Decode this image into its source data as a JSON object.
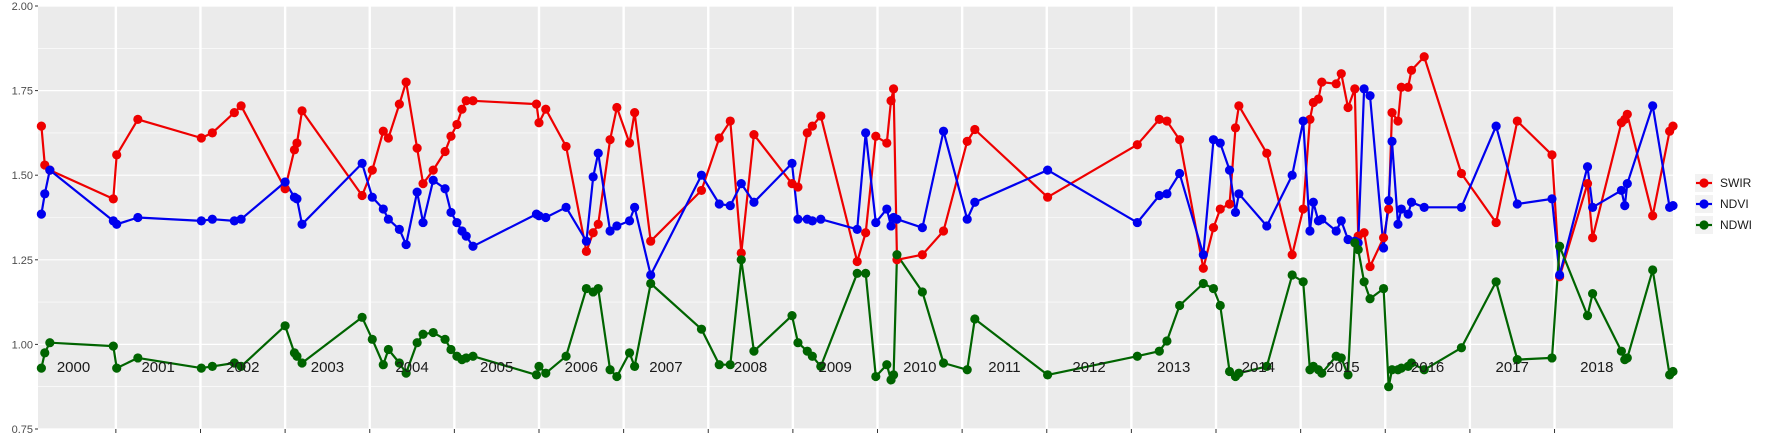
{
  "chart_data": {
    "type": "line",
    "title": "",
    "xlabel": "",
    "ylabel": "",
    "xlim": [
      1999.58,
      2018.9
    ],
    "ylim": [
      0.75,
      2.0
    ],
    "y_ticks": [
      "0.75",
      "1.00",
      "1.25",
      "1.50",
      "1.75",
      "2.00"
    ],
    "year_panels": [
      "2000",
      "2001",
      "2002",
      "2003",
      "2004",
      "2005",
      "2006",
      "2007",
      "2008",
      "2009",
      "2010",
      "2011",
      "2012",
      "2013",
      "2014",
      "2015",
      "2016",
      "2017",
      "2018"
    ],
    "grid": true,
    "legend_position": "right",
    "colors": {
      "SWIR": "#ee0000",
      "NDVI": "#0000ee",
      "NDWI": "#006400",
      "panel_bg": "#ebebeb",
      "grid": "#ffffff"
    },
    "series": [
      {
        "name": "SWIR",
        "x": [
          1999.62,
          1999.66,
          1999.72,
          2000.47,
          2000.51,
          2000.76,
          2001.51,
          2001.64,
          2001.9,
          2001.98,
          2002.5,
          2002.61,
          2002.64,
          2002.7,
          2003.41,
          2003.53,
          2003.66,
          2003.72,
          2003.85,
          2003.93,
          2004.06,
          2004.13,
          2004.25,
          2004.39,
          2004.46,
          2004.53,
          2004.59,
          2004.64,
          2004.72,
          2005.47,
          2005.5,
          2005.58,
          2005.82,
          2006.06,
          2006.14,
          2006.2,
          2006.34,
          2006.42,
          2006.57,
          2006.63,
          2006.82,
          2007.42,
          2007.63,
          2007.76,
          2007.89,
          2008.04,
          2008.49,
          2008.56,
          2008.67,
          2008.73,
          2008.83,
          2009.26,
          2009.36,
          2009.48,
          2009.61,
          2009.66,
          2009.69,
          2009.73,
          2010.03,
          2010.28,
          2010.56,
          2010.65,
          2011.51,
          2012.57,
          2012.83,
          2012.92,
          2013.07,
          2013.35,
          2013.47,
          2013.55,
          2013.66,
          2013.73,
          2013.77,
          2014.1,
          2014.4,
          2014.53,
          2014.61,
          2014.65,
          2014.71,
          2014.75,
          2014.92,
          2014.98,
          2015.06,
          2015.14,
          2015.18,
          2015.25,
          2015.32,
          2015.48,
          2015.54,
          2015.58,
          2015.65,
          2015.69,
          2015.77,
          2015.81,
          2015.96,
          2016.4,
          2016.81,
          2017.06,
          2017.47,
          2017.56,
          2017.89,
          2017.95,
          2018.29,
          2018.33,
          2018.36,
          2018.66,
          2018.86,
          2018.9
        ],
        "y": [
          1.645,
          1.53,
          1.515,
          1.43,
          1.56,
          1.665,
          1.61,
          1.625,
          1.685,
          1.705,
          1.46,
          1.575,
          1.595,
          1.69,
          1.44,
          1.515,
          1.63,
          1.61,
          1.71,
          1.775,
          1.58,
          1.475,
          1.515,
          1.57,
          1.615,
          1.65,
          1.695,
          1.72,
          1.72,
          1.71,
          1.655,
          1.695,
          1.585,
          1.275,
          1.33,
          1.355,
          1.605,
          1.7,
          1.595,
          1.685,
          1.305,
          1.455,
          1.61,
          1.66,
          1.27,
          1.62,
          1.475,
          1.465,
          1.625,
          1.645,
          1.675,
          1.245,
          1.33,
          1.615,
          1.595,
          1.72,
          1.755,
          1.25,
          1.265,
          1.335,
          1.6,
          1.635,
          1.435,
          1.59,
          1.665,
          1.66,
          1.605,
          1.225,
          1.345,
          1.4,
          1.415,
          1.64,
          1.705,
          1.565,
          1.265,
          1.4,
          1.665,
          1.715,
          1.725,
          1.775,
          1.77,
          1.8,
          1.7,
          1.755,
          1.32,
          1.33,
          1.23,
          1.315,
          1.4,
          1.685,
          1.66,
          1.76,
          1.76,
          1.81,
          1.85,
          1.505,
          1.36,
          1.66,
          1.56,
          1.2,
          1.475,
          1.315,
          1.655,
          1.665,
          1.68,
          1.38,
          1.63,
          1.645
        ]
      },
      {
        "name": "NDVI",
        "x": [
          1999.62,
          1999.66,
          1999.72,
          2000.47,
          2000.51,
          2000.76,
          2001.51,
          2001.64,
          2001.9,
          2001.98,
          2002.5,
          2002.61,
          2002.64,
          2002.7,
          2003.41,
          2003.53,
          2003.66,
          2003.72,
          2003.85,
          2003.93,
          2004.06,
          2004.13,
          2004.25,
          2004.39,
          2004.46,
          2004.53,
          2004.59,
          2004.64,
          2004.72,
          2005.47,
          2005.5,
          2005.58,
          2005.82,
          2006.06,
          2006.14,
          2006.2,
          2006.34,
          2006.42,
          2006.57,
          2006.63,
          2006.82,
          2007.42,
          2007.63,
          2007.76,
          2007.89,
          2008.04,
          2008.49,
          2008.56,
          2008.67,
          2008.73,
          2008.83,
          2009.26,
          2009.36,
          2009.48,
          2009.61,
          2009.66,
          2009.69,
          2009.73,
          2010.03,
          2010.28,
          2010.56,
          2010.65,
          2011.51,
          2012.57,
          2012.83,
          2012.92,
          2013.07,
          2013.35,
          2013.47,
          2013.55,
          2013.66,
          2013.73,
          2013.77,
          2014.1,
          2014.4,
          2014.53,
          2014.61,
          2014.65,
          2014.71,
          2014.75,
          2014.92,
          2014.98,
          2015.06,
          2015.14,
          2015.18,
          2015.25,
          2015.32,
          2015.48,
          2015.54,
          2015.58,
          2015.65,
          2015.69,
          2015.77,
          2015.81,
          2015.96,
          2016.4,
          2016.81,
          2017.06,
          2017.47,
          2017.56,
          2017.89,
          2017.95,
          2018.29,
          2018.33,
          2018.36,
          2018.66,
          2018.86,
          2018.9
        ],
        "y": [
          1.385,
          1.445,
          1.515,
          1.365,
          1.355,
          1.375,
          1.365,
          1.37,
          1.365,
          1.37,
          1.48,
          1.435,
          1.43,
          1.355,
          1.535,
          1.435,
          1.4,
          1.37,
          1.34,
          1.295,
          1.45,
          1.36,
          1.485,
          1.46,
          1.39,
          1.36,
          1.335,
          1.32,
          1.29,
          1.385,
          1.38,
          1.375,
          1.405,
          1.305,
          1.495,
          1.565,
          1.335,
          1.35,
          1.365,
          1.405,
          1.205,
          1.5,
          1.415,
          1.41,
          1.475,
          1.42,
          1.535,
          1.37,
          1.37,
          1.365,
          1.37,
          1.34,
          1.625,
          1.36,
          1.4,
          1.35,
          1.375,
          1.37,
          1.345,
          1.63,
          1.37,
          1.42,
          1.515,
          1.36,
          1.44,
          1.445,
          1.505,
          1.265,
          1.605,
          1.595,
          1.515,
          1.39,
          1.445,
          1.35,
          1.5,
          1.66,
          1.335,
          1.42,
          1.365,
          1.37,
          1.335,
          1.365,
          1.31,
          1.305,
          1.3,
          1.755,
          1.735,
          1.285,
          1.425,
          1.6,
          1.355,
          1.4,
          1.385,
          1.42,
          1.405,
          1.405,
          1.645,
          1.415,
          1.43,
          1.205,
          1.525,
          1.405,
          1.455,
          1.41,
          1.475,
          1.705,
          1.405,
          1.41
        ]
      },
      {
        "name": "NDWI",
        "x": [
          1999.62,
          1999.66,
          1999.72,
          2000.47,
          2000.51,
          2000.76,
          2001.51,
          2001.64,
          2001.9,
          2001.98,
          2002.5,
          2002.61,
          2002.64,
          2002.7,
          2003.41,
          2003.53,
          2003.66,
          2003.72,
          2003.85,
          2003.93,
          2004.06,
          2004.13,
          2004.25,
          2004.39,
          2004.46,
          2004.53,
          2004.59,
          2004.64,
          2004.72,
          2005.47,
          2005.5,
          2005.58,
          2005.82,
          2006.06,
          2006.14,
          2006.2,
          2006.34,
          2006.42,
          2006.57,
          2006.63,
          2006.82,
          2007.42,
          2007.63,
          2007.76,
          2007.89,
          2008.04,
          2008.49,
          2008.56,
          2008.67,
          2008.73,
          2008.83,
          2009.26,
          2009.36,
          2009.48,
          2009.61,
          2009.66,
          2009.69,
          2009.73,
          2010.03,
          2010.28,
          2010.56,
          2010.65,
          2011.51,
          2012.57,
          2012.83,
          2012.92,
          2013.07,
          2013.35,
          2013.47,
          2013.55,
          2013.66,
          2013.73,
          2013.77,
          2014.1,
          2014.4,
          2014.53,
          2014.61,
          2014.65,
          2014.71,
          2014.75,
          2014.92,
          2014.98,
          2015.06,
          2015.14,
          2015.18,
          2015.25,
          2015.32,
          2015.48,
          2015.54,
          2015.58,
          2015.65,
          2015.69,
          2015.77,
          2015.81,
          2015.96,
          2016.4,
          2016.81,
          2017.06,
          2017.47,
          2017.56,
          2017.89,
          2017.95,
          2018.29,
          2018.33,
          2018.36,
          2018.66,
          2018.86,
          2018.9
        ],
        "y": [
          0.93,
          0.975,
          1.005,
          0.995,
          0.93,
          0.96,
          0.93,
          0.935,
          0.945,
          0.935,
          1.055,
          0.975,
          0.965,
          0.945,
          1.08,
          1.015,
          0.94,
          0.985,
          0.945,
          0.915,
          1.005,
          1.03,
          1.035,
          1.015,
          0.985,
          0.965,
          0.955,
          0.96,
          0.965,
          0.91,
          0.935,
          0.915,
          0.965,
          1.165,
          1.155,
          1.165,
          0.925,
          0.905,
          0.975,
          0.935,
          1.18,
          1.045,
          0.94,
          0.94,
          1.25,
          0.98,
          1.085,
          1.005,
          0.98,
          0.965,
          0.935,
          1.21,
          1.21,
          0.905,
          0.94,
          0.895,
          0.91,
          1.265,
          1.155,
          0.945,
          0.925,
          1.075,
          0.91,
          0.965,
          0.98,
          1.01,
          1.115,
          1.18,
          1.165,
          1.115,
          0.92,
          0.905,
          0.915,
          0.935,
          1.205,
          1.185,
          0.925,
          0.935,
          0.925,
          0.915,
          0.965,
          0.96,
          0.91,
          1.3,
          1.28,
          1.185,
          1.135,
          1.165,
          0.875,
          0.925,
          0.925,
          0.93,
          0.935,
          0.945,
          0.925,
          0.99,
          1.185,
          0.955,
          0.96,
          1.29,
          1.085,
          1.15,
          0.98,
          0.955,
          0.96,
          1.22,
          0.91,
          0.92
        ]
      }
    ]
  }
}
